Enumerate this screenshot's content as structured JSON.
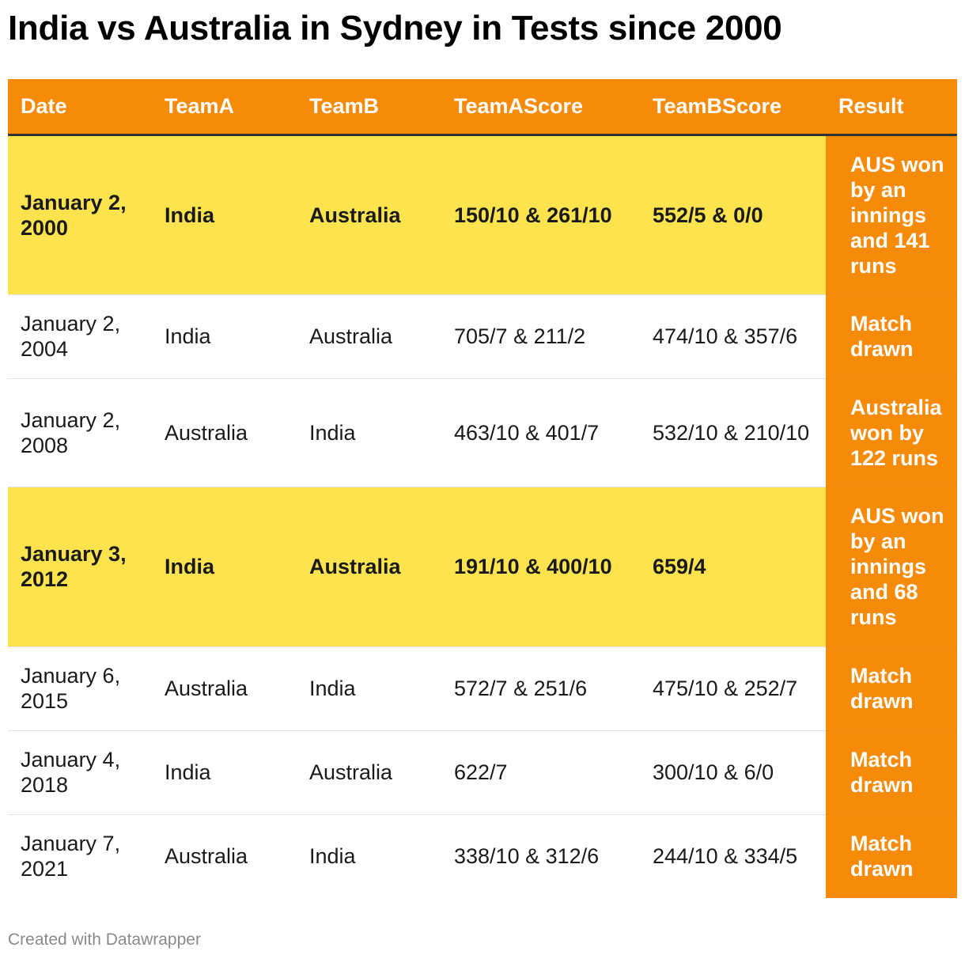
{
  "title": "India vs Australia in Sydney in Tests since 2000",
  "footer": "Created with Datawrapper",
  "colors": {
    "header_bg": "#f68b0a",
    "result_bg": "#f68b0a",
    "highlight_bg": "#fde44f",
    "row_bg": "#ffffff"
  },
  "chart_data": {
    "type": "table",
    "columns": [
      "Date",
      "TeamA",
      "TeamB",
      "TeamAScore",
      "TeamBScore",
      "Result"
    ],
    "rows": [
      {
        "highlight": true,
        "cells": [
          "January 2, 2000",
          "India",
          "Australia",
          "150/10 & 261/10",
          "552/5 & 0/0",
          "AUS won by an innings and 141 runs"
        ]
      },
      {
        "highlight": false,
        "cells": [
          "January 2, 2004",
          "India",
          "Australia",
          "705/7 & 211/2",
          "474/10 & 357/6",
          "Match drawn"
        ]
      },
      {
        "highlight": false,
        "cells": [
          "January 2, 2008",
          "Australia",
          "India",
          "463/10 & 401/7",
          "532/10 & 210/10",
          "Australia won by 122 runs"
        ]
      },
      {
        "highlight": true,
        "cells": [
          "January 3, 2012",
          "India",
          "Australia",
          "191/10 & 400/10",
          "659/4",
          "AUS won by an innings and 68 runs"
        ]
      },
      {
        "highlight": false,
        "cells": [
          "January 6, 2015",
          "Australia",
          "India",
          "572/7 & 251/6",
          "475/10 & 252/7",
          "Match drawn"
        ]
      },
      {
        "highlight": false,
        "cells": [
          "January 4, 2018",
          "India",
          "Australia",
          "622/7",
          "300/10 & 6/0",
          "Match drawn"
        ]
      },
      {
        "highlight": false,
        "cells": [
          "January 7, 2021",
          "Australia",
          "India",
          "338/10 & 312/6",
          "244/10 & 334/5",
          "Match drawn"
        ]
      }
    ]
  }
}
